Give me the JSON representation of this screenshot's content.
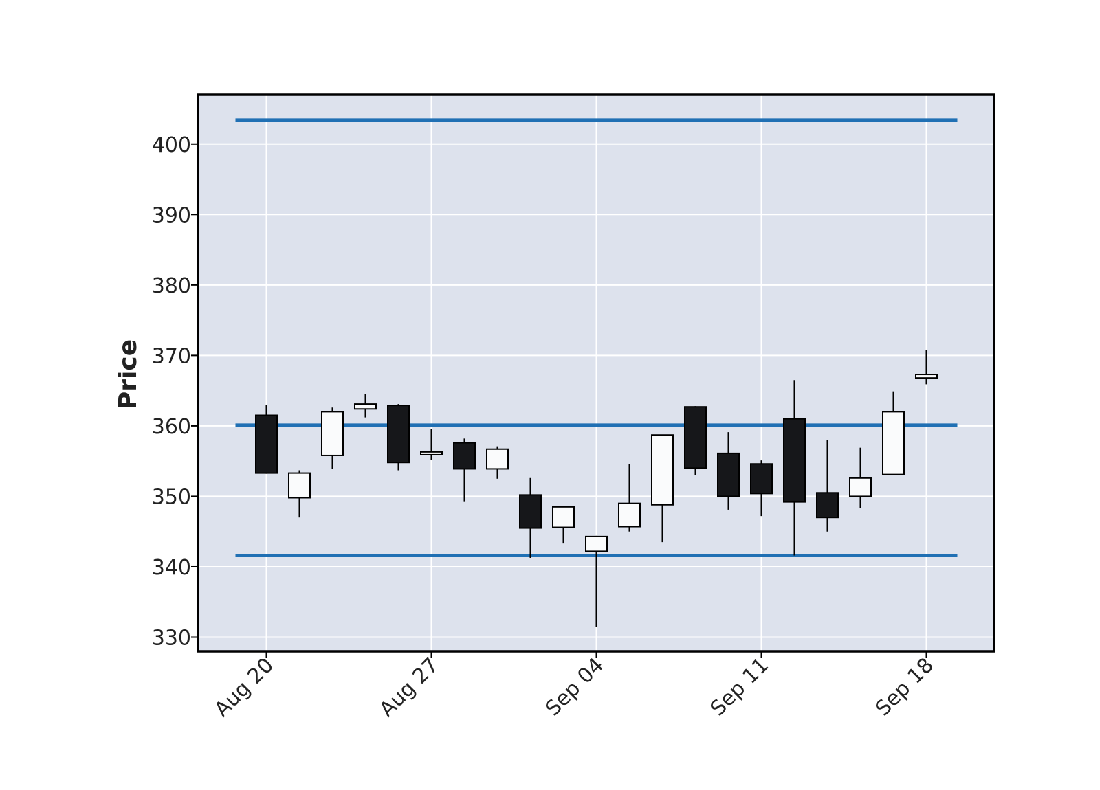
{
  "chart_data": {
    "type": "candlestick",
    "ylabel": "Price",
    "ylim": [
      328,
      407
    ],
    "yticks": [
      330,
      340,
      350,
      360,
      370,
      380,
      390,
      400
    ],
    "grid": true,
    "x_tick_labels": [
      {
        "label": "Aug 20",
        "index": 0
      },
      {
        "label": "Aug 27",
        "index": 5
      },
      {
        "label": "Sep 04",
        "index": 10
      },
      {
        "label": "Sep 11",
        "index": 15
      },
      {
        "label": "Sep 18",
        "index": 20
      }
    ],
    "candles": [
      {
        "date": "Aug 20",
        "open": 361.5,
        "high": 363.0,
        "low": 353.2,
        "close": 353.3
      },
      {
        "date": "Aug 21",
        "open": 349.8,
        "high": 353.7,
        "low": 347.0,
        "close": 353.3
      },
      {
        "date": "Aug 22",
        "open": 355.8,
        "high": 362.6,
        "low": 353.9,
        "close": 362.0
      },
      {
        "date": "Aug 23",
        "open": 362.4,
        "high": 364.5,
        "low": 361.2,
        "close": 363.1
      },
      {
        "date": "Aug 24",
        "open": 362.9,
        "high": 363.1,
        "low": 353.7,
        "close": 354.8
      },
      {
        "date": "Aug 27",
        "open": 355.9,
        "high": 359.6,
        "low": 355.2,
        "close": 356.3
      },
      {
        "date": "Aug 28",
        "open": 357.6,
        "high": 358.2,
        "low": 349.2,
        "close": 353.9
      },
      {
        "date": "Aug 29",
        "open": 353.9,
        "high": 357.1,
        "low": 352.5,
        "close": 356.7
      },
      {
        "date": "Aug 30",
        "open": 350.2,
        "high": 352.6,
        "low": 341.2,
        "close": 345.5
      },
      {
        "date": "Aug 31",
        "open": 345.6,
        "high": 348.5,
        "low": 343.3,
        "close": 348.5
      },
      {
        "date": "Sep 04",
        "open": 342.2,
        "high": 344.4,
        "low": 331.5,
        "close": 344.3
      },
      {
        "date": "Sep 05",
        "open": 345.7,
        "high": 354.6,
        "low": 345.0,
        "close": 349.0
      },
      {
        "date": "Sep 06",
        "open": 348.8,
        "high": 358.7,
        "low": 343.5,
        "close": 358.7
      },
      {
        "date": "Sep 07",
        "open": 362.7,
        "high": 362.8,
        "low": 353.0,
        "close": 354.0
      },
      {
        "date": "Sep 10",
        "open": 356.1,
        "high": 359.1,
        "low": 348.1,
        "close": 350.0
      },
      {
        "date": "Sep 11",
        "open": 354.6,
        "high": 355.1,
        "low": 347.2,
        "close": 350.4
      },
      {
        "date": "Sep 12",
        "open": 361.0,
        "high": 366.5,
        "low": 341.6,
        "close": 349.2
      },
      {
        "date": "Sep 13",
        "open": 350.5,
        "high": 358.0,
        "low": 345.0,
        "close": 347.0
      },
      {
        "date": "Sep 14",
        "open": 350.0,
        "high": 356.9,
        "low": 348.3,
        "close": 352.6
      },
      {
        "date": "Sep 17",
        "open": 353.1,
        "high": 364.9,
        "low": 353.0,
        "close": 362.0
      },
      {
        "date": "Sep 18",
        "open": 366.8,
        "high": 370.8,
        "low": 365.9,
        "close": 367.3
      }
    ],
    "hlines": [
      403.4,
      360.1,
      341.6
    ],
    "colors": {
      "up": "#fafbfc",
      "down": "#16171a",
      "edge": "#000000",
      "hline": "#2070b4",
      "plot_bg": "#dde2ed",
      "grid": "#ffffff",
      "frame": "#000000"
    }
  }
}
